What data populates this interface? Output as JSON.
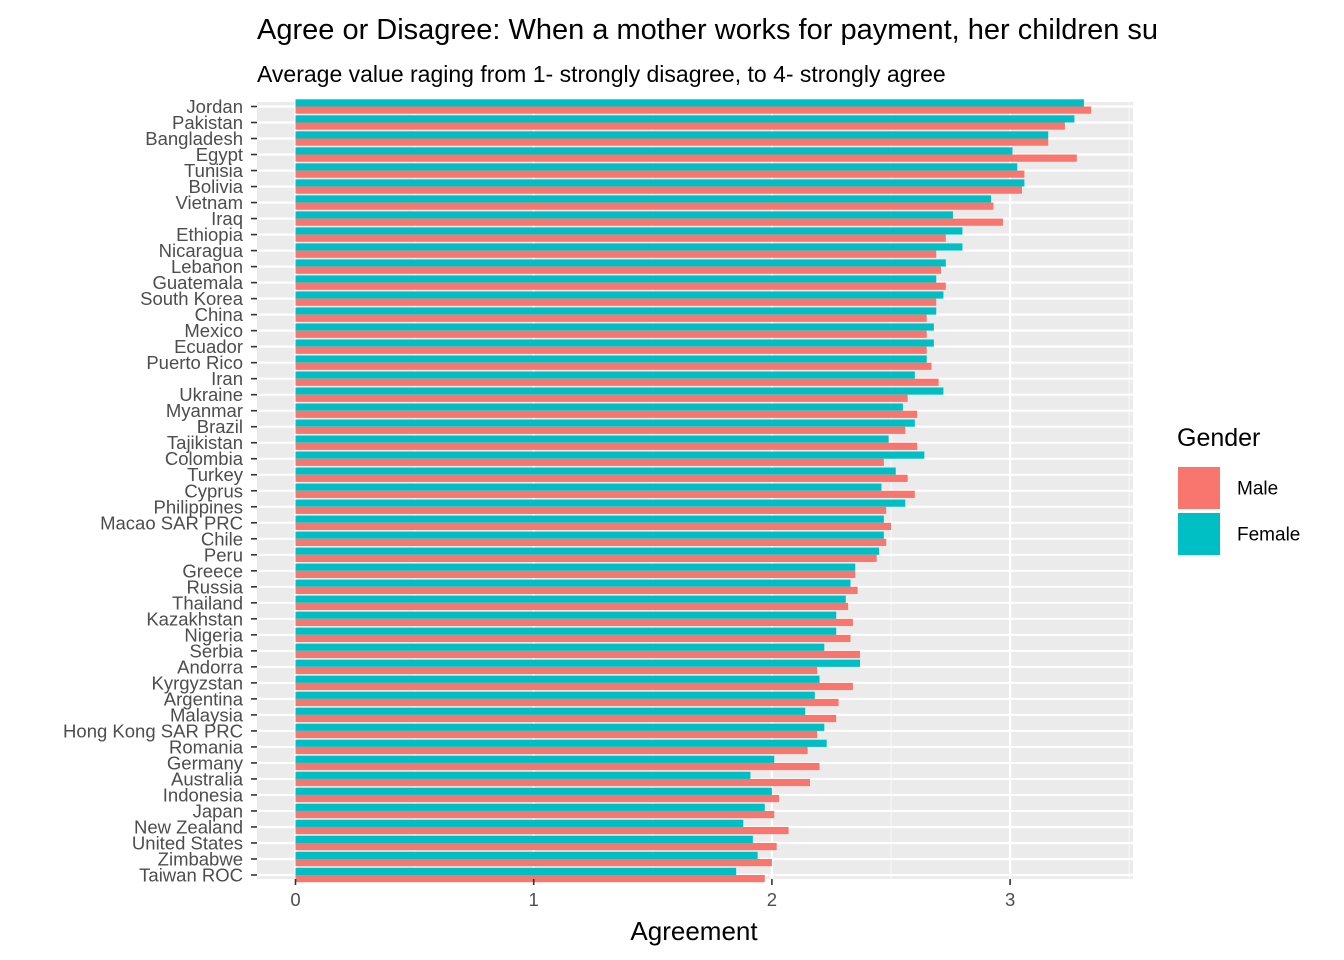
{
  "chart_data": {
    "type": "bar",
    "orientation": "horizontal",
    "title": "Agree or Disagree: When a mother works for payment, her children su",
    "subtitle": "Average value raging from 1- strongly disagree, to 4- strongly agree",
    "xlabel": "Agreement",
    "ylabel": "",
    "xlim": [
      -0.16,
      3.5
    ],
    "x_ticks": [
      "0",
      "1",
      "2",
      "3"
    ],
    "grid": true,
    "legend": {
      "title": "Gender",
      "position": "right"
    },
    "categories": [
      "Jordan",
      "Pakistan",
      "Bangladesh",
      "Egypt",
      "Tunisia",
      "Bolivia",
      "Vietnam",
      "Iraq",
      "Ethiopia",
      "Nicaragua",
      "Lebanon",
      "Guatemala",
      "South Korea",
      "China",
      "Mexico",
      "Ecuador",
      "Puerto Rico",
      "Iran",
      "Ukraine",
      "Myanmar",
      "Brazil",
      "Tajikistan",
      "Colombia",
      "Turkey",
      "Cyprus",
      "Philippines",
      "Macao SAR PRC",
      "Chile",
      "Peru",
      "Greece",
      "Russia",
      "Thailand",
      "Kazakhstan",
      "Nigeria",
      "Serbia",
      "Andorra",
      "Kyrgyzstan",
      "Argentina",
      "Malaysia",
      "Hong Kong SAR PRC",
      "Romania",
      "Germany",
      "Australia",
      "Indonesia",
      "Japan",
      "New Zealand",
      "United States",
      "Zimbabwe",
      "Taiwan ROC"
    ],
    "series": [
      {
        "name": "Male",
        "color": "#F8766D",
        "values": [
          3.34,
          3.23,
          3.16,
          3.28,
          3.06,
          3.05,
          2.93,
          2.97,
          2.73,
          2.69,
          2.71,
          2.73,
          2.69,
          2.65,
          2.65,
          2.65,
          2.67,
          2.7,
          2.57,
          2.61,
          2.56,
          2.61,
          2.47,
          2.57,
          2.6,
          2.48,
          2.5,
          2.48,
          2.44,
          2.35,
          2.36,
          2.32,
          2.34,
          2.33,
          2.37,
          2.19,
          2.34,
          2.28,
          2.27,
          2.19,
          2.15,
          2.2,
          2.16,
          2.03,
          2.01,
          2.07,
          2.02,
          2.0,
          1.97
        ]
      },
      {
        "name": "Female",
        "color": "#00BFC4",
        "values": [
          3.31,
          3.27,
          3.16,
          3.01,
          3.03,
          3.06,
          2.92,
          2.76,
          2.8,
          2.8,
          2.73,
          2.69,
          2.72,
          2.69,
          2.68,
          2.68,
          2.65,
          2.6,
          2.72,
          2.55,
          2.6,
          2.49,
          2.64,
          2.52,
          2.46,
          2.56,
          2.47,
          2.47,
          2.45,
          2.35,
          2.33,
          2.31,
          2.27,
          2.27,
          2.22,
          2.37,
          2.2,
          2.18,
          2.14,
          2.22,
          2.23,
          2.01,
          1.91,
          2.0,
          1.97,
          1.88,
          1.92,
          1.94,
          1.85
        ]
      }
    ]
  }
}
